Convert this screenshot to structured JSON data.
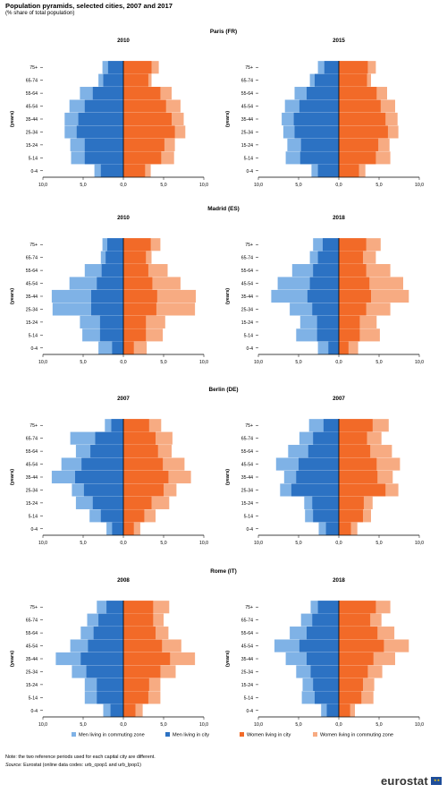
{
  "header": {
    "title": "Population pyramids, selected cities, 2007 and 2017",
    "subtitle": "(% share of total population)"
  },
  "age_groups": [
    "0-4",
    "5-14",
    "15-24",
    "25-34",
    "35-44",
    "45-54",
    "55-64",
    "65-74",
    "75+"
  ],
  "colors": {
    "men_commuting": "#7fb2e6",
    "men_city": "#2c72c3",
    "women_city": "#f26a28",
    "women_commuting": "#f7ab82",
    "axis": "#000000",
    "text": "#000000"
  },
  "chart_data": [
    {
      "type": "bar",
      "city": "Paris (FR)",
      "panel_title": "2010",
      "ylabel": "(years)",
      "xlim": [
        -10,
        10
      ],
      "xticks": [
        "10,0",
        "5,0",
        "0,0",
        "5,0",
        "10,0"
      ],
      "series": [
        {
          "name": "Men living in commuting zone",
          "values": [
            3.6,
            6.5,
            6.6,
            7.3,
            7.3,
            6.7,
            5.4,
            3.1,
            2.6
          ]
        },
        {
          "name": "Men living in city",
          "values": [
            2.8,
            4.8,
            4.8,
            5.8,
            5.6,
            4.8,
            3.8,
            2.5,
            1.9
          ]
        },
        {
          "name": "Women living in city",
          "values": [
            2.7,
            4.7,
            5.1,
            6.4,
            6.0,
            5.3,
            4.6,
            3.1,
            3.5
          ]
        },
        {
          "name": "Women living in commuting zone",
          "values": [
            3.4,
            6.3,
            6.4,
            7.7,
            7.5,
            7.1,
            6.0,
            3.5,
            4.4
          ]
        }
      ]
    },
    {
      "type": "bar",
      "city": "Paris (FR)",
      "panel_title": "2015",
      "ylabel": "(years)",
      "xlim": [
        -10,
        10
      ],
      "xticks": [
        "10,0",
        "5,0",
        "0,0",
        "5,0",
        "10,0"
      ],
      "series": [
        {
          "name": "Men living in commuting zone",
          "values": [
            3.4,
            6.6,
            6.4,
            6.9,
            7.1,
            6.7,
            5.5,
            3.6,
            2.6
          ]
        },
        {
          "name": "Men living in city",
          "values": [
            2.6,
            4.8,
            4.7,
            5.5,
            5.6,
            4.9,
            4.0,
            3.0,
            1.8
          ]
        },
        {
          "name": "Women living in city",
          "values": [
            2.5,
            4.6,
            4.9,
            6.1,
            5.8,
            5.2,
            4.7,
            3.5,
            3.6
          ]
        },
        {
          "name": "Women living in commuting zone",
          "values": [
            3.3,
            6.4,
            6.3,
            7.4,
            7.3,
            7.0,
            6.0,
            4.0,
            4.6
          ]
        }
      ]
    },
    {
      "type": "bar",
      "city": "Madrid (ES)",
      "panel_title": "2010",
      "ylabel": "(years)",
      "xlim": [
        -10,
        10
      ],
      "xticks": [
        "10,0",
        "5,0",
        "0,0",
        "5,0",
        "10,0"
      ],
      "series": [
        {
          "name": "Men living in commuting zone",
          "values": [
            3.1,
            5.1,
            5.4,
            8.8,
            8.9,
            6.7,
            4.8,
            2.8,
            2.6
          ]
        },
        {
          "name": "Men living in city",
          "values": [
            1.4,
            2.9,
            2.9,
            4.0,
            4.0,
            3.3,
            2.7,
            2.2,
            2.0
          ]
        },
        {
          "name": "Women living in city",
          "values": [
            1.3,
            2.8,
            2.8,
            4.1,
            4.2,
            3.6,
            3.1,
            2.8,
            3.4
          ]
        },
        {
          "name": "Women living in commuting zone",
          "values": [
            2.9,
            4.9,
            5.2,
            8.9,
            9.0,
            7.1,
            5.5,
            3.5,
            4.6
          ]
        }
      ]
    },
    {
      "type": "bar",
      "city": "Madrid (ES)",
      "panel_title": "2018",
      "ylabel": "(years)",
      "xlim": [
        -10,
        10
      ],
      "xticks": [
        "10,0",
        "5,0",
        "0,0",
        "5,0",
        "10,0"
      ],
      "series": [
        {
          "name": "Men living in commuting zone",
          "values": [
            2.6,
            5.3,
            4.8,
            6.1,
            8.4,
            7.6,
            5.8,
            3.6,
            3.2
          ]
        },
        {
          "name": "Men living in city",
          "values": [
            1.3,
            2.7,
            2.7,
            3.3,
            3.9,
            3.6,
            3.2,
            2.6,
            2.0
          ]
        },
        {
          "name": "Women living in city",
          "values": [
            1.2,
            2.6,
            2.6,
            3.4,
            4.0,
            3.8,
            3.4,
            3.0,
            3.4
          ]
        },
        {
          "name": "Women living in commuting zone",
          "values": [
            2.4,
            5.1,
            4.7,
            6.4,
            8.7,
            8.0,
            6.4,
            4.6,
            5.2
          ]
        }
      ]
    },
    {
      "type": "bar",
      "city": "Berlin (DE)",
      "panel_title": "2007",
      "ylabel": "(years)",
      "xlim": [
        -10,
        10
      ],
      "xticks": [
        "10,0",
        "5,0",
        "0,0",
        "5,0",
        "10,0"
      ],
      "series": [
        {
          "name": "Men living in commuting zone",
          "values": [
            2.1,
            4.2,
            5.9,
            6.4,
            8.9,
            7.7,
            5.9,
            6.6,
            2.3
          ]
        },
        {
          "name": "Men living in city",
          "values": [
            1.4,
            2.8,
            3.8,
            4.9,
            6.0,
            5.2,
            4.1,
            3.5,
            1.5
          ]
        },
        {
          "name": "Women living in city",
          "values": [
            1.3,
            2.6,
            3.5,
            5.0,
            5.6,
            4.9,
            4.3,
            4.0,
            3.2
          ]
        },
        {
          "name": "Women living in commuting zone",
          "values": [
            2.1,
            4.0,
            5.7,
            6.6,
            8.4,
            7.6,
            6.0,
            6.1,
            4.7
          ]
        }
      ]
    },
    {
      "type": "bar",
      "city": "Berlin (DE)",
      "panel_title": "2007",
      "ylabel": "(years)",
      "xlim": [
        -10,
        10
      ],
      "xticks": [
        "10,0",
        "5,0",
        "0,0",
        "5,0",
        "10,0"
      ],
      "series": [
        {
          "name": "Men living in commuting zone",
          "values": [
            2.5,
            4.2,
            4.3,
            7.3,
            6.8,
            7.8,
            6.3,
            4.9,
            3.7
          ]
        },
        {
          "name": "Men living in city",
          "values": [
            1.6,
            3.2,
            3.3,
            5.9,
            5.3,
            5.0,
            3.8,
            3.2,
            1.9
          ]
        },
        {
          "name": "Women living in city",
          "values": [
            1.5,
            3.0,
            3.1,
            5.8,
            4.8,
            4.7,
            3.9,
            3.5,
            4.2
          ]
        },
        {
          "name": "Women living in commuting zone",
          "values": [
            2.3,
            4.0,
            4.2,
            7.4,
            6.7,
            7.6,
            6.6,
            5.3,
            6.2
          ]
        }
      ]
    },
    {
      "type": "bar",
      "city": "Rome (IT)",
      "panel_title": "2008",
      "ylabel": "(years)",
      "xlim": [
        -10,
        10
      ],
      "xticks": [
        "10,0",
        "5,0",
        "0,0",
        "5,0",
        "10,0"
      ],
      "series": [
        {
          "name": "Men living in commuting zone",
          "values": [
            2.5,
            4.8,
            4.8,
            6.4,
            8.4,
            6.6,
            5.3,
            4.5,
            3.3
          ]
        },
        {
          "name": "Men living in city",
          "values": [
            1.6,
            3.3,
            3.3,
            4.6,
            5.3,
            4.4,
            3.7,
            3.1,
            2.1
          ]
        },
        {
          "name": "Women living in city",
          "values": [
            1.5,
            3.1,
            3.2,
            4.6,
            5.8,
            4.8,
            4.0,
            3.7,
            3.7
          ]
        },
        {
          "name": "Women living in commuting zone",
          "values": [
            2.4,
            4.6,
            4.6,
            6.5,
            8.9,
            7.2,
            5.6,
            5.0,
            5.7
          ]
        }
      ]
    },
    {
      "type": "bar",
      "city": "Rome (IT)",
      "panel_title": "2018",
      "ylabel": "(years)",
      "xlim": [
        -10,
        10
      ],
      "xticks": [
        "10,0",
        "5,0",
        "0,0",
        "5,0",
        "10,0"
      ],
      "series": [
        {
          "name": "Men living in commuting zone",
          "values": [
            2.2,
            4.6,
            4.5,
            5.3,
            6.6,
            8.0,
            6.1,
            4.7,
            3.5
          ]
        },
        {
          "name": "Men living in city",
          "values": [
            1.5,
            3.0,
            3.2,
            3.5,
            4.0,
            4.9,
            4.0,
            3.3,
            2.6
          ]
        },
        {
          "name": "Women living in city",
          "values": [
            1.4,
            2.8,
            3.0,
            3.6,
            4.3,
            5.6,
            4.8,
            3.9,
            4.6
          ]
        },
        {
          "name": "Women living in commuting zone",
          "values": [
            2.0,
            4.3,
            4.4,
            5.4,
            7.0,
            8.7,
            6.9,
            5.3,
            6.4
          ]
        }
      ]
    }
  ],
  "legend": {
    "items": [
      {
        "label": "Men living in commuting zone",
        "color_key": "men_commuting"
      },
      {
        "label": "Men living in city",
        "color_key": "men_city"
      },
      {
        "label": "Women living in city",
        "color_key": "women_city"
      },
      {
        "label": "Women living in commuting zone",
        "color_key": "women_commuting"
      }
    ]
  },
  "footer": {
    "note": "Note: the two reference periods used for each capital city are different.",
    "source_label": "Source:",
    "source_text": " Eurostat (online data codes: urb_cpop1 and urb_lpop1)",
    "logo_text": "eurostat",
    "logo_icon": "eu-flag-icon"
  }
}
